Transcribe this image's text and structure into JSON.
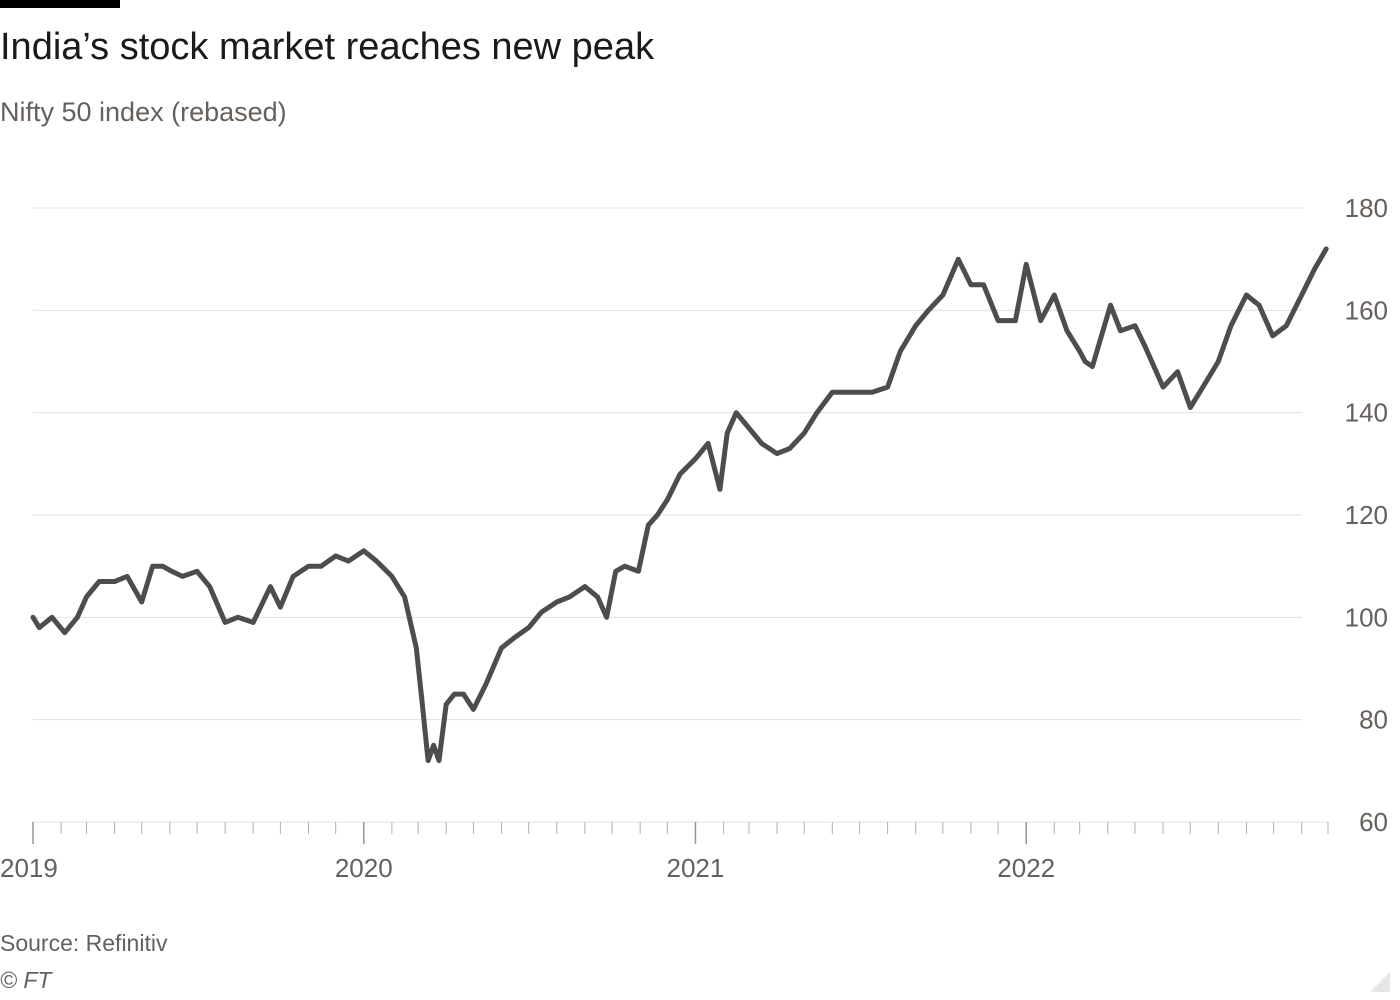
{
  "title": "India’s stock market reaches new peak",
  "subtitle": "Nifty 50 index (rebased)",
  "source": "Source: Refinitiv",
  "copyright": "© FT",
  "colors": {
    "line": "#4d4d4d",
    "grid": "#e3e1df",
    "text": "#66605c",
    "title": "#1a1a1a"
  },
  "chart_data": {
    "type": "line",
    "xlim": [
      "2019-01-01",
      "2022-11-30"
    ],
    "ylim": [
      60,
      180
    ],
    "yticks": [
      60,
      80,
      100,
      120,
      140,
      160,
      180
    ],
    "xtick_labels": [
      {
        "date": "2019-01-01",
        "label": "2019"
      },
      {
        "date": "2020-01-01",
        "label": "2020"
      },
      {
        "date": "2021-01-01",
        "label": "2021"
      },
      {
        "date": "2022-01-01",
        "label": "2022"
      }
    ],
    "y_axis_position": "right",
    "grid": true,
    "series": [
      {
        "x": [
          "2019-01-01",
          "2019-01-08",
          "2019-01-22",
          "2019-02-05",
          "2019-02-19",
          "2019-03-01",
          "2019-03-15",
          "2019-04-01",
          "2019-04-15",
          "2019-05-01",
          "2019-05-13",
          "2019-05-24",
          "2019-06-03",
          "2019-06-15",
          "2019-07-01",
          "2019-07-15",
          "2019-08-01",
          "2019-08-15",
          "2019-09-01",
          "2019-09-20",
          "2019-10-01",
          "2019-10-15",
          "2019-11-01",
          "2019-11-15",
          "2019-12-01",
          "2019-12-15",
          "2020-01-01",
          "2020-01-15",
          "2020-02-01",
          "2020-02-15",
          "2020-02-28",
          "2020-03-05",
          "2020-03-12",
          "2020-03-18",
          "2020-03-24",
          "2020-04-01",
          "2020-04-10",
          "2020-04-20",
          "2020-05-01",
          "2020-05-15",
          "2020-06-01",
          "2020-06-15",
          "2020-07-01",
          "2020-07-15",
          "2020-08-01",
          "2020-08-15",
          "2020-09-01",
          "2020-09-15",
          "2020-09-25",
          "2020-10-05",
          "2020-10-15",
          "2020-10-30",
          "2020-11-10",
          "2020-11-20",
          "2020-12-01",
          "2020-12-15",
          "2021-01-01",
          "2021-01-15",
          "2021-01-28",
          "2021-02-05",
          "2021-02-15",
          "2021-03-01",
          "2021-03-15",
          "2021-04-01",
          "2021-04-15",
          "2021-05-01",
          "2021-05-15",
          "2021-06-01",
          "2021-06-15",
          "2021-07-01",
          "2021-07-15",
          "2021-08-01",
          "2021-08-15",
          "2021-09-01",
          "2021-09-15",
          "2021-10-01",
          "2021-10-18",
          "2021-11-01",
          "2021-11-15",
          "2021-12-01",
          "2021-12-20",
          "2022-01-01",
          "2022-01-17",
          "2022-02-01",
          "2022-02-15",
          "2022-03-01",
          "2022-03-07",
          "2022-03-15",
          "2022-04-04",
          "2022-04-15",
          "2022-05-01",
          "2022-05-12",
          "2022-06-01",
          "2022-06-17",
          "2022-07-01",
          "2022-07-15",
          "2022-08-01",
          "2022-08-15",
          "2022-09-01",
          "2022-09-15",
          "2022-09-30",
          "2022-10-15",
          "2022-11-01",
          "2022-11-15",
          "2022-11-28"
        ],
        "values": [
          100,
          98,
          100,
          97,
          100,
          104,
          107,
          107,
          108,
          103,
          110,
          110,
          109,
          108,
          109,
          106,
          99,
          100,
          99,
          106,
          102,
          108,
          110,
          110,
          112,
          111,
          113,
          111,
          108,
          104,
          94,
          84,
          72,
          75,
          72,
          83,
          85,
          85,
          82,
          87,
          94,
          96,
          98,
          101,
          103,
          104,
          106,
          104,
          100,
          109,
          110,
          109,
          118,
          120,
          123,
          128,
          131,
          134,
          125,
          136,
          140,
          137,
          134,
          132,
          133,
          136,
          140,
          144,
          144,
          144,
          144,
          145,
          152,
          157,
          160,
          163,
          170,
          165,
          165,
          158,
          158,
          169,
          158,
          163,
          156,
          152,
          150,
          149,
          161,
          156,
          157,
          153,
          145,
          148,
          141,
          145,
          150,
          157,
          163,
          161,
          155,
          157,
          163,
          168,
          172
        ]
      }
    ]
  }
}
